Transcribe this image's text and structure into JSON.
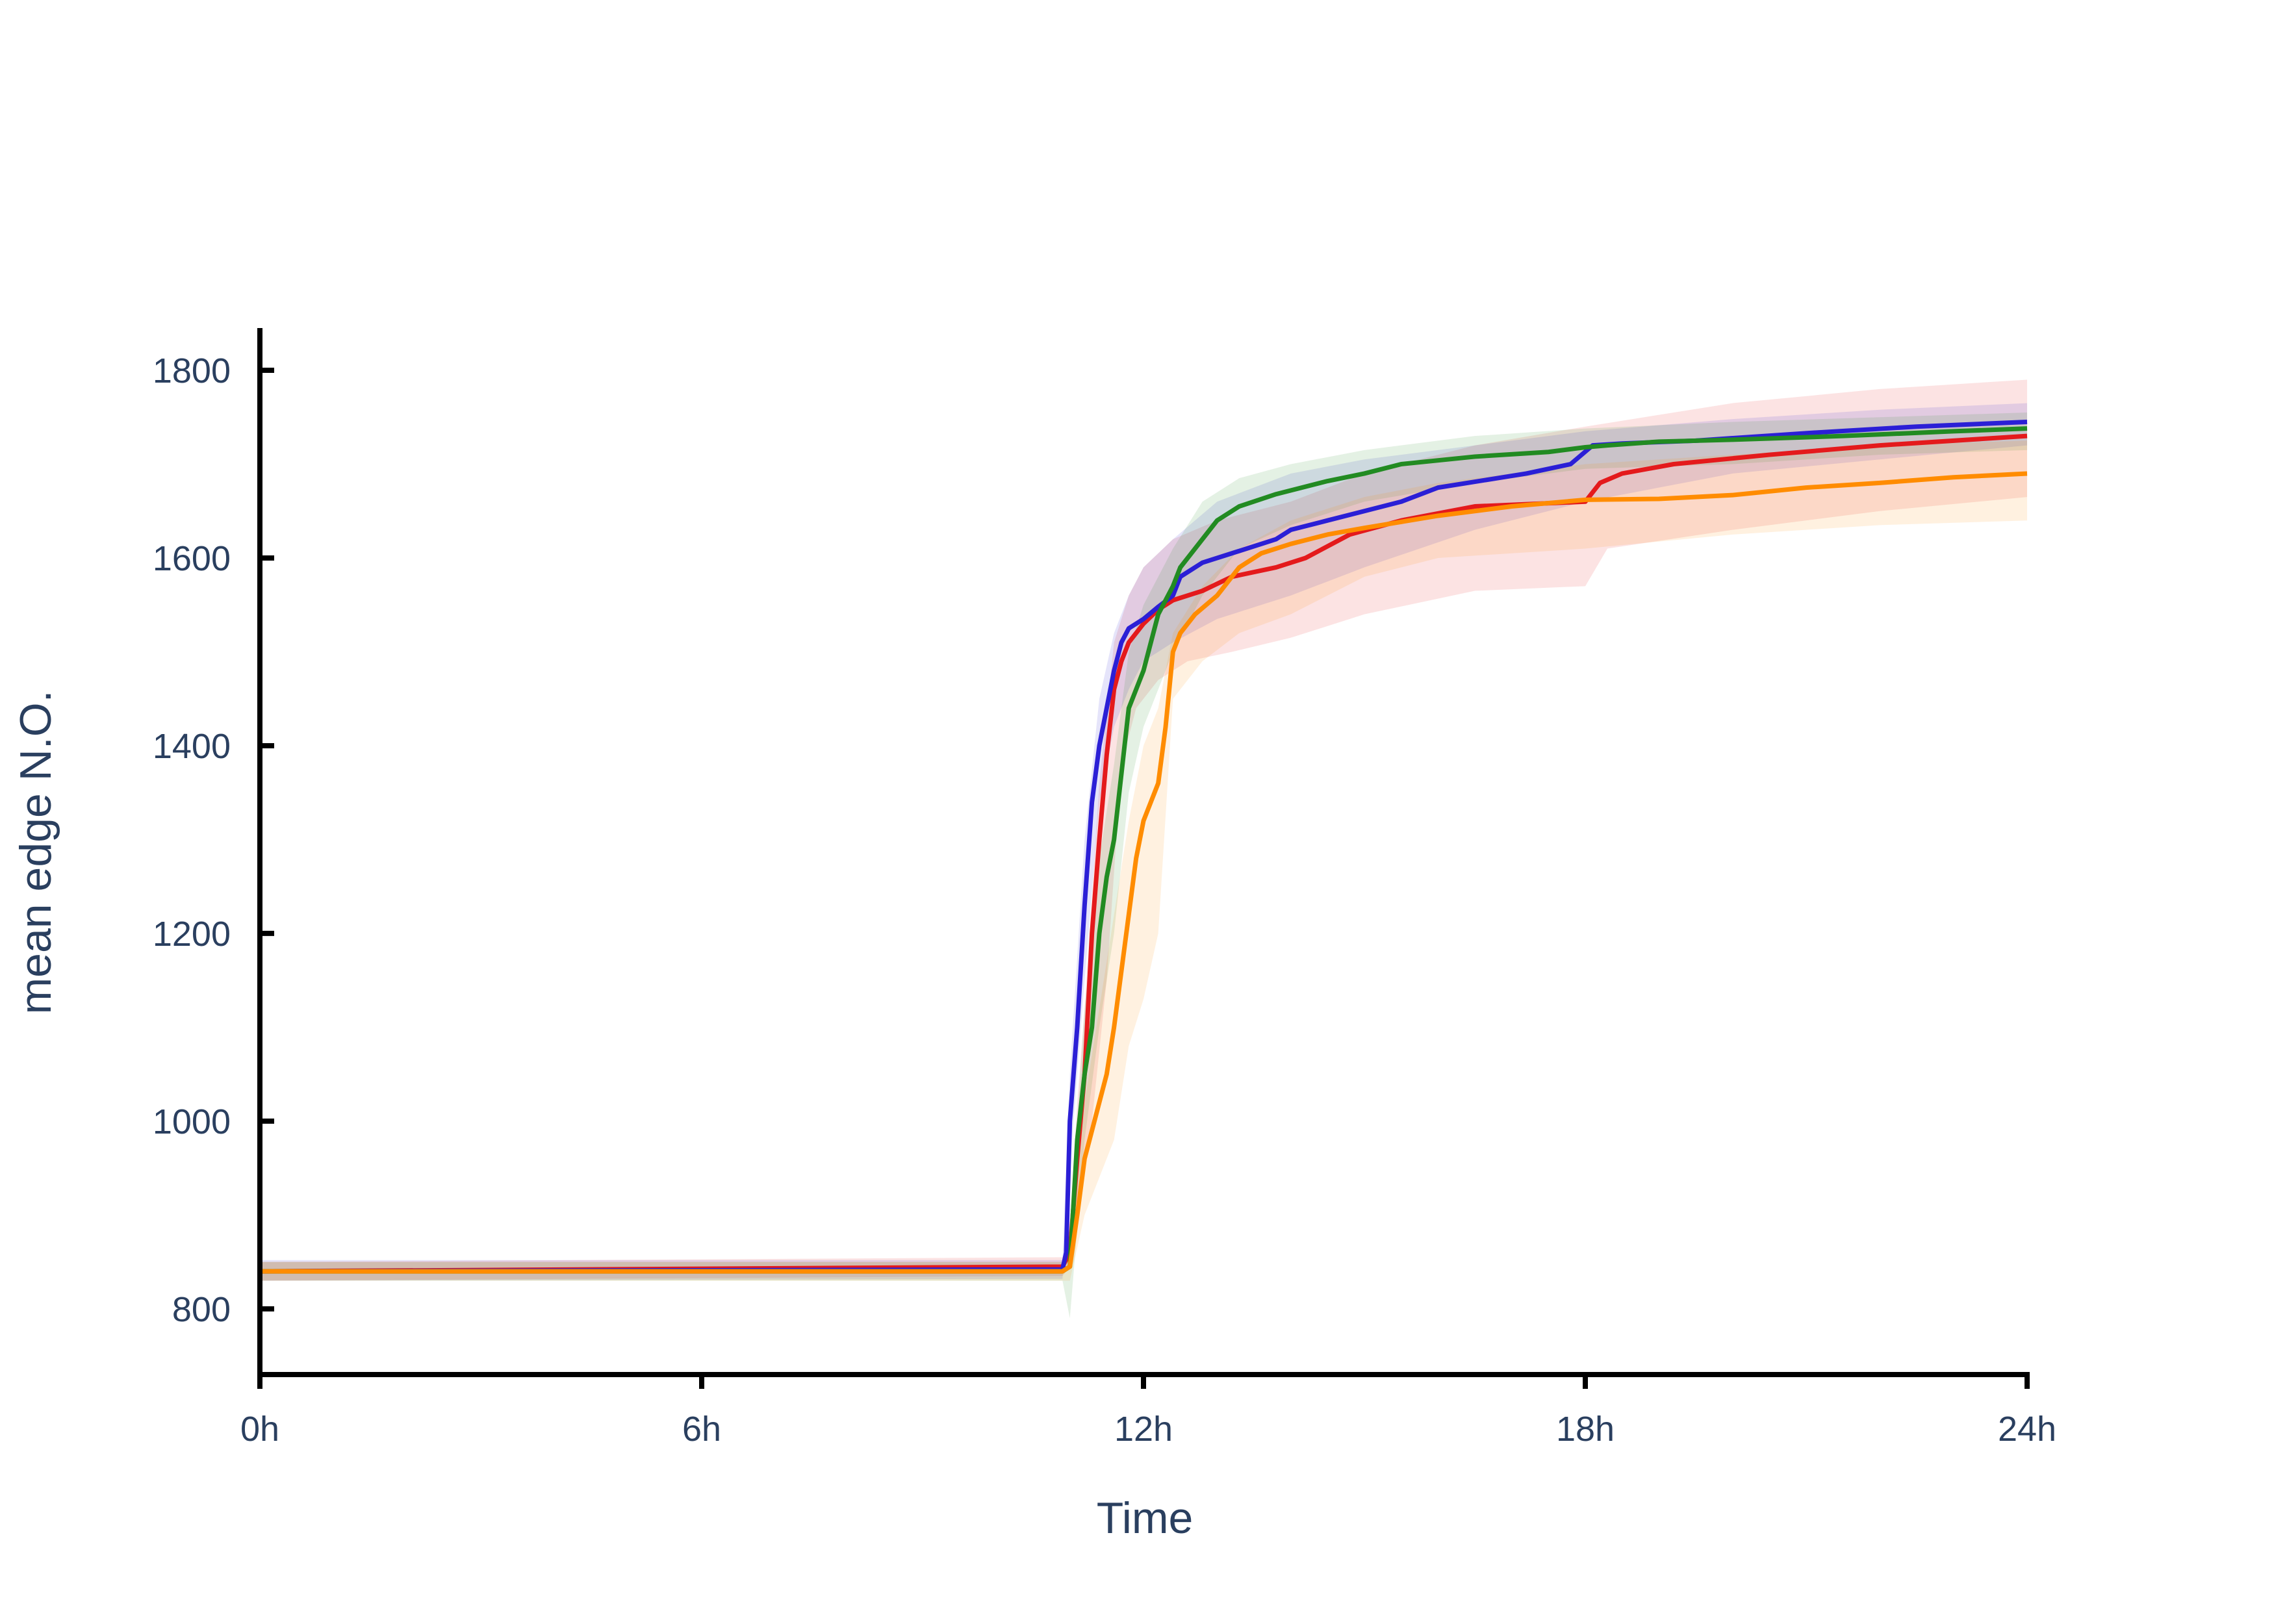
{
  "chart_data": {
    "type": "line",
    "xlabel": "Time",
    "ylabel": "mean edge N.O.",
    "xlim": [
      0,
      24
    ],
    "ylim": [
      730,
      1845
    ],
    "x_ticks": [
      {
        "value": 0,
        "label": "0h"
      },
      {
        "value": 6,
        "label": "6h"
      },
      {
        "value": 12,
        "label": "12h"
      },
      {
        "value": 18,
        "label": "18h"
      },
      {
        "value": 24,
        "label": "24h"
      }
    ],
    "y_ticks": [
      {
        "value": 800,
        "label": "800"
      },
      {
        "value": 1000,
        "label": "1000"
      },
      {
        "value": 1200,
        "label": "1200"
      },
      {
        "value": 1400,
        "label": "1400"
      },
      {
        "value": 1600,
        "label": "1600"
      },
      {
        "value": 1800,
        "label": "1800"
      }
    ],
    "grid": false,
    "legend": "none",
    "series": [
      {
        "color": "#e41a1c",
        "points": [
          [
            0,
            840
          ],
          [
            10.9,
            845
          ],
          [
            11.0,
            860
          ],
          [
            11.1,
            960
          ],
          [
            11.2,
            1050
          ],
          [
            11.3,
            1200
          ],
          [
            11.4,
            1300
          ],
          [
            11.5,
            1390
          ],
          [
            11.6,
            1460
          ],
          [
            11.7,
            1490
          ],
          [
            11.8,
            1510
          ],
          [
            12.0,
            1530
          ],
          [
            12.2,
            1545
          ],
          [
            12.4,
            1555
          ],
          [
            12.8,
            1565
          ],
          [
            13.2,
            1580
          ],
          [
            13.8,
            1590
          ],
          [
            14.2,
            1600
          ],
          [
            14.8,
            1625
          ],
          [
            15.5,
            1640
          ],
          [
            16.5,
            1655
          ],
          [
            18.0,
            1660
          ],
          [
            18.2,
            1680
          ],
          [
            18.5,
            1690
          ],
          [
            19.2,
            1700
          ],
          [
            20.5,
            1710
          ],
          [
            22.0,
            1720
          ],
          [
            24.0,
            1730
          ]
        ],
        "upper": [
          [
            0,
            850
          ],
          [
            10.9,
            855
          ],
          [
            11.0,
            875
          ],
          [
            11.1,
            1020
          ],
          [
            11.2,
            1120
          ],
          [
            11.4,
            1360
          ],
          [
            11.6,
            1510
          ],
          [
            11.8,
            1560
          ],
          [
            12.0,
            1590
          ],
          [
            12.4,
            1620
          ],
          [
            13.0,
            1640
          ],
          [
            14.0,
            1660
          ],
          [
            15.0,
            1690
          ],
          [
            16.5,
            1720
          ],
          [
            18.0,
            1740
          ],
          [
            20.0,
            1765
          ],
          [
            22.0,
            1780
          ],
          [
            24.0,
            1790
          ]
        ],
        "lower": [
          [
            0,
            830
          ],
          [
            10.9,
            835
          ],
          [
            11.0,
            845
          ],
          [
            11.1,
            900
          ],
          [
            11.3,
            1000
          ],
          [
            11.5,
            1150
          ],
          [
            11.7,
            1380
          ],
          [
            11.9,
            1440
          ],
          [
            12.2,
            1470
          ],
          [
            12.6,
            1490
          ],
          [
            13.2,
            1500
          ],
          [
            14.0,
            1515
          ],
          [
            15.0,
            1540
          ],
          [
            16.5,
            1565
          ],
          [
            18.0,
            1570
          ],
          [
            18.3,
            1610
          ],
          [
            20.0,
            1630
          ],
          [
            22.0,
            1650
          ],
          [
            24.0,
            1665
          ]
        ]
      },
      {
        "color": "#2b1fd6",
        "points": [
          [
            0,
            840
          ],
          [
            10.9,
            842
          ],
          [
            10.95,
            860
          ],
          [
            11.0,
            1000
          ],
          [
            11.1,
            1100
          ],
          [
            11.2,
            1230
          ],
          [
            11.3,
            1340
          ],
          [
            11.4,
            1400
          ],
          [
            11.5,
            1440
          ],
          [
            11.6,
            1480
          ],
          [
            11.7,
            1510
          ],
          [
            11.8,
            1525
          ],
          [
            12.0,
            1535
          ],
          [
            12.2,
            1548
          ],
          [
            12.4,
            1560
          ],
          [
            12.5,
            1580
          ],
          [
            12.8,
            1595
          ],
          [
            13.2,
            1605
          ],
          [
            13.8,
            1620
          ],
          [
            14.0,
            1630
          ],
          [
            14.5,
            1640
          ],
          [
            15.0,
            1650
          ],
          [
            15.5,
            1660
          ],
          [
            16.0,
            1675
          ],
          [
            16.8,
            1685
          ],
          [
            17.2,
            1690
          ],
          [
            17.8,
            1700
          ],
          [
            18.1,
            1720
          ],
          [
            18.5,
            1722
          ],
          [
            19.5,
            1725
          ],
          [
            21.0,
            1733
          ],
          [
            22.5,
            1740
          ],
          [
            24.0,
            1745
          ]
        ],
        "upper": [
          [
            0,
            852
          ],
          [
            10.9,
            852
          ],
          [
            11.0,
            1050
          ],
          [
            11.2,
            1300
          ],
          [
            11.4,
            1450
          ],
          [
            11.6,
            1520
          ],
          [
            11.8,
            1560
          ],
          [
            12.0,
            1590
          ],
          [
            12.4,
            1620
          ],
          [
            13.0,
            1660
          ],
          [
            14.0,
            1690
          ],
          [
            15.0,
            1705
          ],
          [
            16.5,
            1720
          ],
          [
            18.0,
            1735
          ],
          [
            20.0,
            1748
          ],
          [
            22.0,
            1758
          ],
          [
            24.0,
            1765
          ]
        ],
        "lower": [
          [
            0,
            830
          ],
          [
            10.9,
            832
          ],
          [
            11.0,
            950
          ],
          [
            11.2,
            1150
          ],
          [
            11.4,
            1340
          ],
          [
            11.6,
            1420
          ],
          [
            11.8,
            1460
          ],
          [
            12.0,
            1490
          ],
          [
            12.4,
            1510
          ],
          [
            13.0,
            1535
          ],
          [
            14.0,
            1560
          ],
          [
            15.0,
            1590
          ],
          [
            16.5,
            1630
          ],
          [
            18.0,
            1660
          ],
          [
            20.0,
            1690
          ],
          [
            22.0,
            1705
          ],
          [
            24.0,
            1720
          ]
        ]
      },
      {
        "color": "#228b22",
        "points": [
          [
            0,
            840
          ],
          [
            10.9,
            840
          ],
          [
            11.0,
            845
          ],
          [
            11.1,
            980
          ],
          [
            11.2,
            1050
          ],
          [
            11.3,
            1100
          ],
          [
            11.4,
            1200
          ],
          [
            11.5,
            1260
          ],
          [
            11.6,
            1300
          ],
          [
            11.7,
            1370
          ],
          [
            11.8,
            1440
          ],
          [
            12.0,
            1480
          ],
          [
            12.1,
            1510
          ],
          [
            12.2,
            1540
          ],
          [
            12.4,
            1570
          ],
          [
            12.5,
            1590
          ],
          [
            12.8,
            1620
          ],
          [
            13.0,
            1640
          ],
          [
            13.3,
            1655
          ],
          [
            13.8,
            1668
          ],
          [
            14.5,
            1682
          ],
          [
            15.0,
            1690
          ],
          [
            15.5,
            1700
          ],
          [
            16.5,
            1708
          ],
          [
            17.5,
            1713
          ],
          [
            18.0,
            1718
          ],
          [
            18.3,
            1720
          ],
          [
            19.0,
            1724
          ],
          [
            20.0,
            1726
          ],
          [
            21.5,
            1730
          ],
          [
            23.0,
            1735
          ],
          [
            24.0,
            1738
          ]
        ],
        "upper": [
          [
            0,
            850
          ],
          [
            10.9,
            850
          ],
          [
            11.0,
            880
          ],
          [
            11.2,
            1120
          ],
          [
            11.4,
            1280
          ],
          [
            11.6,
            1380
          ],
          [
            11.8,
            1500
          ],
          [
            12.0,
            1550
          ],
          [
            12.4,
            1610
          ],
          [
            12.8,
            1660
          ],
          [
            13.3,
            1685
          ],
          [
            14.0,
            1700
          ],
          [
            15.0,
            1715
          ],
          [
            16.5,
            1730
          ],
          [
            18.0,
            1738
          ],
          [
            20.0,
            1745
          ],
          [
            22.0,
            1750
          ],
          [
            24.0,
            1755
          ]
        ],
        "lower": [
          [
            0,
            830
          ],
          [
            10.9,
            830
          ],
          [
            11.0,
            790
          ],
          [
            11.2,
            980
          ],
          [
            11.4,
            1100
          ],
          [
            11.6,
            1200
          ],
          [
            11.8,
            1350
          ],
          [
            12.0,
            1420
          ],
          [
            12.4,
            1500
          ],
          [
            12.8,
            1560
          ],
          [
            13.3,
            1610
          ],
          [
            14.0,
            1635
          ],
          [
            15.0,
            1660
          ],
          [
            16.5,
            1680
          ],
          [
            18.0,
            1695
          ],
          [
            20.0,
            1700
          ],
          [
            22.0,
            1710
          ],
          [
            24.0,
            1715
          ]
        ]
      },
      {
        "color": "#ff8c00",
        "points": [
          [
            0,
            840
          ],
          [
            10.9,
            840
          ],
          [
            11.0,
            845
          ],
          [
            11.1,
            900
          ],
          [
            11.2,
            960
          ],
          [
            11.3,
            990
          ],
          [
            11.4,
            1020
          ],
          [
            11.5,
            1050
          ],
          [
            11.6,
            1100
          ],
          [
            11.7,
            1160
          ],
          [
            11.8,
            1220
          ],
          [
            11.9,
            1280
          ],
          [
            12.0,
            1320
          ],
          [
            12.1,
            1340
          ],
          [
            12.2,
            1360
          ],
          [
            12.3,
            1420
          ],
          [
            12.4,
            1500
          ],
          [
            12.5,
            1520
          ],
          [
            12.7,
            1540
          ],
          [
            13.0,
            1560
          ],
          [
            13.3,
            1590
          ],
          [
            13.6,
            1605
          ],
          [
            14.0,
            1615
          ],
          [
            14.5,
            1625
          ],
          [
            15.0,
            1632
          ],
          [
            16.0,
            1645
          ],
          [
            17.0,
            1655
          ],
          [
            18.0,
            1662
          ],
          [
            19.0,
            1663
          ],
          [
            20.0,
            1667
          ],
          [
            21.0,
            1675
          ],
          [
            22.0,
            1680
          ],
          [
            23.0,
            1686
          ],
          [
            24.0,
            1690
          ]
        ],
        "upper": [
          [
            0,
            850
          ],
          [
            10.9,
            850
          ],
          [
            11.0,
            860
          ],
          [
            11.2,
            1020
          ],
          [
            11.4,
            1120
          ],
          [
            11.6,
            1220
          ],
          [
            11.8,
            1320
          ],
          [
            12.0,
            1400
          ],
          [
            12.2,
            1440
          ],
          [
            12.4,
            1520
          ],
          [
            12.8,
            1570
          ],
          [
            13.3,
            1610
          ],
          [
            14.0,
            1640
          ],
          [
            15.0,
            1665
          ],
          [
            16.0,
            1680
          ],
          [
            18.0,
            1700
          ],
          [
            20.0,
            1710
          ],
          [
            22.0,
            1720
          ],
          [
            24.0,
            1725
          ]
        ],
        "lower": [
          [
            0,
            830
          ],
          [
            10.9,
            830
          ],
          [
            11.0,
            830
          ],
          [
            11.2,
            900
          ],
          [
            11.4,
            940
          ],
          [
            11.6,
            980
          ],
          [
            11.8,
            1080
          ],
          [
            12.0,
            1130
          ],
          [
            12.2,
            1200
          ],
          [
            12.4,
            1450
          ],
          [
            12.8,
            1490
          ],
          [
            13.3,
            1520
          ],
          [
            14.0,
            1540
          ],
          [
            15.0,
            1580
          ],
          [
            16.0,
            1600
          ],
          [
            18.0,
            1610
          ],
          [
            20.0,
            1625
          ],
          [
            22.0,
            1635
          ],
          [
            24.0,
            1640
          ]
        ]
      }
    ]
  }
}
